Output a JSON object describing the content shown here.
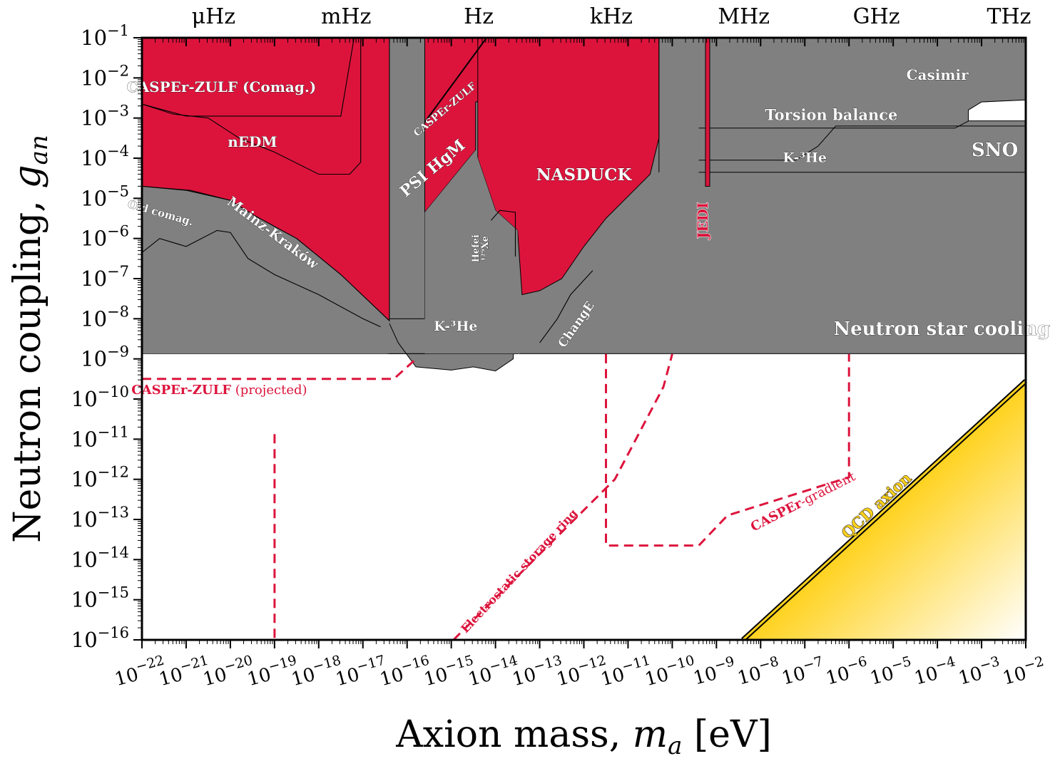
{
  "chart_data": {
    "type": "area",
    "xlabel": "Axion mass, m_a [eV]",
    "xlabel_parts": {
      "prefix": "Axion mass, ",
      "symbol": "m",
      "sub": "a",
      "suffix": " [eV]"
    },
    "ylabel": "Neutron coupling, g_an",
    "ylabel_parts": {
      "prefix": "Neutron coupling, ",
      "symbol": "g",
      "sub": "an"
    },
    "x_scale": "log",
    "y_scale": "log",
    "xlim": [
      1e-22,
      0.01
    ],
    "ylim": [
      1e-16,
      0.1
    ],
    "x_ticks": [
      -22,
      -21,
      -20,
      -19,
      -18,
      -17,
      -16,
      -15,
      -14,
      -13,
      -12,
      -11,
      -10,
      -9,
      -8,
      -7,
      -6,
      -5,
      -4,
      -3,
      -2
    ],
    "y_ticks": [
      -16,
      -15,
      -14,
      -13,
      -12,
      -11,
      -10,
      -9,
      -8,
      -7,
      -6,
      -5,
      -4,
      -3,
      -2,
      -1
    ],
    "tick_base": "10",
    "tick_minus": "−",
    "frequency_axis": [
      {
        "label": "μHz",
        "log_mass": -20.38
      },
      {
        "label": "mHz",
        "log_mass": -17.38
      },
      {
        "label": "Hz",
        "log_mass": -14.38
      },
      {
        "label": "kHz",
        "log_mass": -11.38
      },
      {
        "label": "MHz",
        "log_mass": -8.38
      },
      {
        "label": "GHz",
        "log_mass": -5.38
      },
      {
        "label": "THz",
        "log_mass": -2.38
      }
    ],
    "colors": {
      "excluded_lab": "#dc143c",
      "excluded_astro": "#808080",
      "projected": "#dc143c",
      "qcd_band": "#ffd21e",
      "qcd_edge": "#000000"
    },
    "regions": [
      {
        "name": "Neutron star cooling",
        "kind": "astro",
        "upper_log_g": -1,
        "lower_log_g": -8.87,
        "x_range": [
          -22,
          -2
        ]
      },
      {
        "name": "SNO",
        "kind": "astro",
        "points": [
          [
            -9.4,
            -4.35
          ],
          [
            -2,
            -4.35
          ],
          [
            -2,
            -1
          ],
          [
            -9.4,
            -1
          ]
        ]
      },
      {
        "name": "K-3He",
        "kind": "astro",
        "points": [
          [
            -9.4,
            -4.05
          ],
          [
            -7.2,
            -4.05
          ],
          [
            -6.7,
            -3.7
          ],
          [
            -6.3,
            -3.2
          ],
          [
            -2,
            -3.2
          ]
        ]
      },
      {
        "name": "Torsion balance",
        "kind": "astro",
        "points": [
          [
            -9.4,
            -3.25
          ],
          [
            -3.6,
            -3.25
          ],
          [
            -3.0,
            -2.9
          ],
          [
            -2,
            -2.9
          ]
        ]
      },
      {
        "name": "Casimir",
        "kind": "astro",
        "points": [
          [
            -3.3,
            -2.8
          ],
          [
            -3.0,
            -2.6
          ],
          [
            -2,
            -2.55
          ]
        ]
      },
      {
        "name": "K-3He",
        "kind": "astro",
        "low_mass_region": true,
        "points": [
          [
            -16.45,
            -8.0
          ],
          [
            -16.2,
            -8.6
          ],
          [
            -15.8,
            -9.2
          ],
          [
            -15.0,
            -9.28
          ],
          [
            -14.5,
            -9.2
          ],
          [
            -14.0,
            -9.3
          ],
          [
            -13.6,
            -9.0
          ],
          [
            -13.5,
            -7.3
          ]
        ]
      },
      {
        "name": "Old comag.",
        "kind": "astro",
        "points": [
          [
            -22,
            -6.35
          ],
          [
            -21.6,
            -6.0
          ],
          [
            -21,
            -6.2
          ],
          [
            -20.3,
            -5.8
          ],
          [
            -20.0,
            -5.85
          ],
          [
            -19.6,
            -6.5
          ],
          [
            -19.0,
            -6.9
          ],
          [
            -18.0,
            -7.4
          ],
          [
            -17.0,
            -8.0
          ],
          [
            -16.6,
            -8.2
          ]
        ]
      },
      {
        "name": "Hefei 129Xe",
        "kind": "astro",
        "points": [
          [
            -14.1,
            -5.55
          ],
          [
            -13.9,
            -5.3
          ],
          [
            -13.55,
            -5.35
          ],
          [
            -13.55,
            -6.45
          ]
        ]
      },
      {
        "name": "ChangE",
        "kind": "astro",
        "points": [
          [
            -13.0,
            -8.6
          ],
          [
            -12.6,
            -8.0
          ],
          [
            -12.3,
            -7.4
          ],
          [
            -11.8,
            -6.8
          ]
        ]
      },
      {
        "name": "CASPEr-ZULF (Comag.)",
        "kind": "lab",
        "points": [
          [
            -22,
            -2.65
          ],
          [
            -21,
            -2.95
          ],
          [
            -17.5,
            -2.95
          ],
          [
            -17.2,
            -1.0
          ]
        ]
      },
      {
        "name": "nEDM",
        "kind": "lab",
        "points": [
          [
            -22,
            -2.65
          ],
          [
            -21.3,
            -2.9
          ],
          [
            -20.5,
            -3.0
          ],
          [
            -19.8,
            -3.5
          ],
          [
            -19.0,
            -3.85
          ],
          [
            -18.0,
            -4.4
          ],
          [
            -17.3,
            -4.4
          ],
          [
            -17.05,
            -4.1
          ],
          [
            -17.05,
            -1.0
          ]
        ]
      },
      {
        "name": "Mainz-Kraków",
        "kind": "lab",
        "points": [
          [
            -22,
            -4.7
          ],
          [
            -20.9,
            -4.8
          ],
          [
            -20.0,
            -5.05
          ],
          [
            -19.5,
            -5.4
          ],
          [
            -18.5,
            -6.0
          ],
          [
            -17.5,
            -6.9
          ],
          [
            -16.4,
            -8.05
          ],
          [
            -16.4,
            -1.0
          ]
        ]
      },
      {
        "name": "PSI HgM",
        "kind": "lab",
        "points": [
          [
            -15.6,
            -5.35
          ],
          [
            -14.45,
            -3.8
          ],
          [
            -15.6,
            -1.0
          ]
        ]
      },
      {
        "name": "CASPEr-ZULF",
        "kind": "lab",
        "points": [
          [
            -15.6,
            -3.1
          ],
          [
            -14.2,
            -1.0
          ]
        ]
      },
      {
        "name": "NASDUCK",
        "kind": "lab",
        "points": [
          [
            -14.4,
            -4.0
          ],
          [
            -14.0,
            -5.3
          ],
          [
            -13.5,
            -5.8
          ],
          [
            -13.4,
            -7.4
          ],
          [
            -13.0,
            -7.3
          ],
          [
            -12.5,
            -7.0
          ],
          [
            -12.0,
            -6.2
          ],
          [
            -11.5,
            -5.5
          ],
          [
            -10.5,
            -4.4
          ],
          [
            -10.3,
            -3.5
          ],
          [
            -10.3,
            -1.0
          ]
        ]
      },
      {
        "name": "JEDI",
        "kind": "lab",
        "points": [
          [
            -9.2,
            -1.0
          ],
          [
            -9.2,
            -4.7
          ]
        ]
      },
      {
        "name": "QCD axion",
        "kind": "band",
        "points": [
          [
            -8.4,
            -16.0
          ],
          [
            -2,
            -9.55
          ]
        ]
      }
    ],
    "projections": [
      {
        "name": "CASPEr-ZULF (projected)",
        "points": [
          [
            -22,
            -9.5
          ],
          [
            -16.3,
            -9.5
          ],
          [
            -15.8,
            -9.0
          ]
        ]
      },
      {
        "name": "Electrostatic storage ring",
        "points": [
          [
            -19.0,
            -15.95
          ],
          [
            -19.0,
            -10.8
          ]
        ]
      },
      {
        "name": "Electrostatic storage ring",
        "points": [
          [
            -14.95,
            -16.0
          ],
          [
            -11.3,
            -12.0
          ],
          [
            -10.2,
            -9.7
          ],
          [
            -10.0,
            -8.88
          ]
        ]
      },
      {
        "name": "CASPEr-gradient",
        "points": [
          [
            -11.5,
            -8.88
          ],
          [
            -11.5,
            -13.65
          ],
          [
            -9.4,
            -13.65
          ],
          [
            -8.75,
            -12.9
          ],
          [
            -6.0,
            -11.95
          ],
          [
            -6.0,
            -8.88
          ]
        ]
      }
    ],
    "region_labels": [
      {
        "text": "CASPEr-ZULF (Comag.)",
        "x": -20.2,
        "y": -2.35,
        "size": 20,
        "rot": 0
      },
      {
        "text": "nEDM",
        "x": -19.5,
        "y": -3.72,
        "size": 20,
        "rot": 0
      },
      {
        "text": "Old comag.",
        "x": -21.6,
        "y": -5.45,
        "size": 15,
        "rot": 16
      },
      {
        "text": "Mainz-Kraków",
        "x": -19.1,
        "y": -5.95,
        "size": 19,
        "rot": 37
      },
      {
        "text": "PSI HgM",
        "x": -15.35,
        "y": -4.35,
        "size": 22,
        "rot": -40
      },
      {
        "text": "CASPEr-ZULF",
        "x": -15.1,
        "y": -2.85,
        "size": 14,
        "rot": -40
      },
      {
        "text": "NASDUCK",
        "x": -12.0,
        "y": -4.55,
        "size": 23,
        "rot": 0
      },
      {
        "text": "K-³He",
        "x": -14.9,
        "y": -8.3,
        "size": 19,
        "rot": 0
      },
      {
        "text": "ChangE",
        "x": -12.1,
        "y": -8.2,
        "size": 17,
        "rot": -55
      },
      {
        "text": "Neutron star cooling",
        "x": -3.9,
        "y": -8.4,
        "size": 26,
        "rot": 0
      },
      {
        "text": "Torsion balance",
        "x": -6.4,
        "y": -3.05,
        "size": 21,
        "rot": 0
      },
      {
        "text": "K-³He",
        "x": -7.0,
        "y": -4.1,
        "size": 19,
        "rot": 0
      },
      {
        "text": "Casimir",
        "x": -4.0,
        "y": -2.05,
        "size": 20,
        "rot": 0
      },
      {
        "text": "SNO",
        "x": -2.7,
        "y": -3.95,
        "size": 26,
        "rot": 0
      }
    ],
    "hefei_label": {
      "line1": "Hefei",
      "line2": "¹²⁹Xe",
      "x": -14.38,
      "y": -6.25,
      "size": 13,
      "rot": -90
    },
    "jedi_label": {
      "text": "JEDI",
      "x": -9.2,
      "y": -5.55,
      "size": 20,
      "rot": -90
    },
    "qcd_label": {
      "text": "QCD axion",
      "x": -5.3,
      "y": -12.75,
      "size": 21,
      "rot": -43
    },
    "projection_labels": [
      {
        "bold": "CASPEr-ZULF",
        "rest": " (projected)",
        "x": -20.25,
        "y": -9.88,
        "size": 18,
        "rot": 0,
        "anchor": "middle"
      },
      {
        "bold": "Electrostatic storage ring",
        "rest": "",
        "x": -13.4,
        "y": -14.35,
        "size": 16,
        "rot": -47,
        "anchor": "middle"
      },
      {
        "bold": "CASPEr",
        "rest": "-gradient",
        "x": -7.0,
        "y": -12.65,
        "size": 18,
        "rot": -27,
        "anchor": "middle"
      }
    ]
  }
}
